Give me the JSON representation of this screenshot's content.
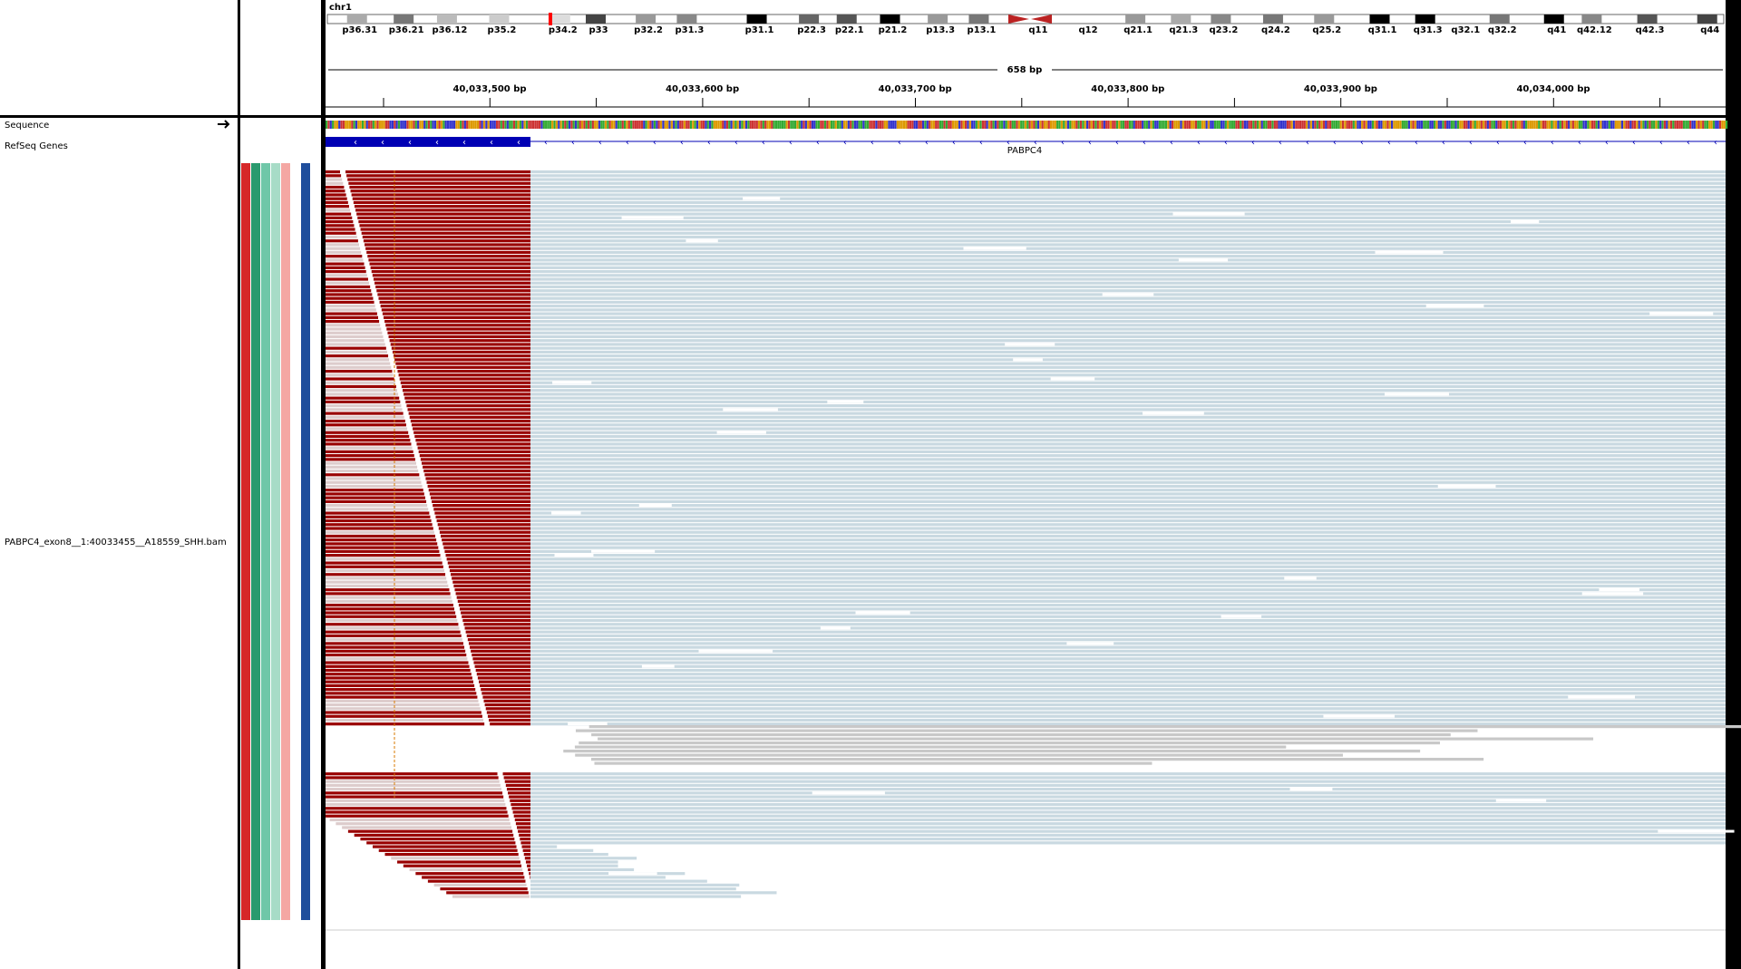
{
  "header": {
    "chromosome": "chr1",
    "span": "658 bp",
    "cytobands": [
      "p36.31",
      "p36.21",
      "p36.12",
      "p35.2",
      "p34.2",
      "p33",
      "p32.2",
      "p31.3",
      "p31.1",
      "p22.3",
      "p22.1",
      "p21.2",
      "p13.3",
      "p13.1",
      "q11",
      "q12",
      "q21.1",
      "q21.3",
      "q23.2",
      "q24.2",
      "q25.2",
      "q31.1",
      "q31.3",
      "q32.1",
      "q32.2",
      "q41",
      "q42.12",
      "q42.3",
      "q44"
    ],
    "ruler_labels": [
      "40,033,500 bp",
      "40,033,600 bp",
      "40,033,700 bp",
      "40,033,800 bp",
      "40,033,900 bp",
      "40,034,000 bp"
    ]
  },
  "tracks": {
    "sequence": "Sequence",
    "genes": "RefSeq Genes",
    "gene_name": "PABPC4",
    "alignment": "PABPC4_exon8__1:40033455__A18559_SHH.bam"
  }
}
